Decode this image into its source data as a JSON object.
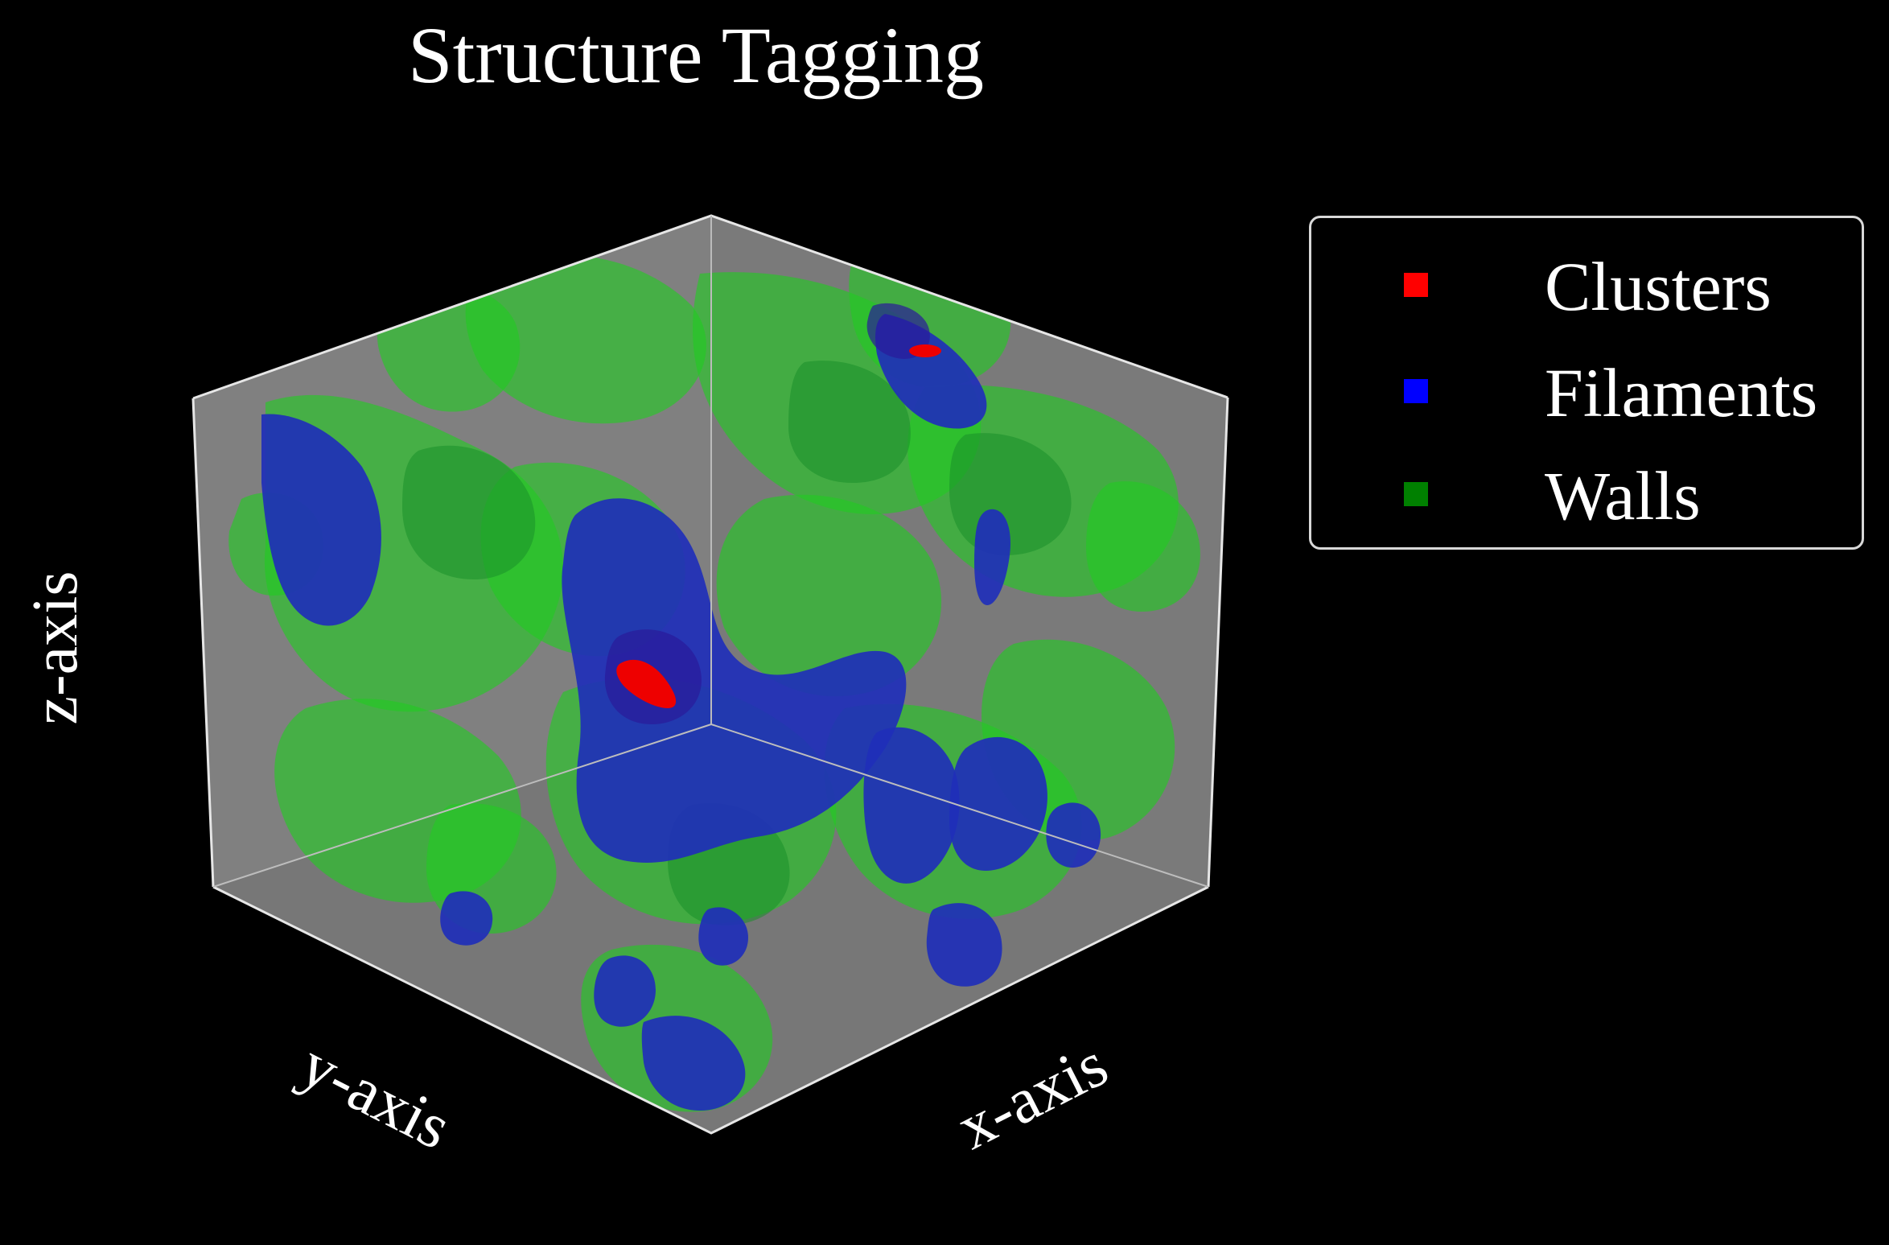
{
  "chart_data": {
    "type": "3d-isosurface",
    "title": "Structure Tagging",
    "xlabel": "x-axis",
    "ylabel": "y-axis",
    "zlabel": "z-axis",
    "background": "#000000",
    "pane_color": "#808080",
    "legend": {
      "placement": "upper-right",
      "entries": [
        {
          "name": "Clusters",
          "color": "#ff0000"
        },
        {
          "name": "Filaments",
          "color": "#0000ff"
        },
        {
          "name": "Walls",
          "color": "#008000"
        }
      ]
    },
    "surface_colors": {
      "walls": "#22cc22",
      "filaments": "#1f2fb8",
      "clusters": "#ee0000"
    }
  }
}
